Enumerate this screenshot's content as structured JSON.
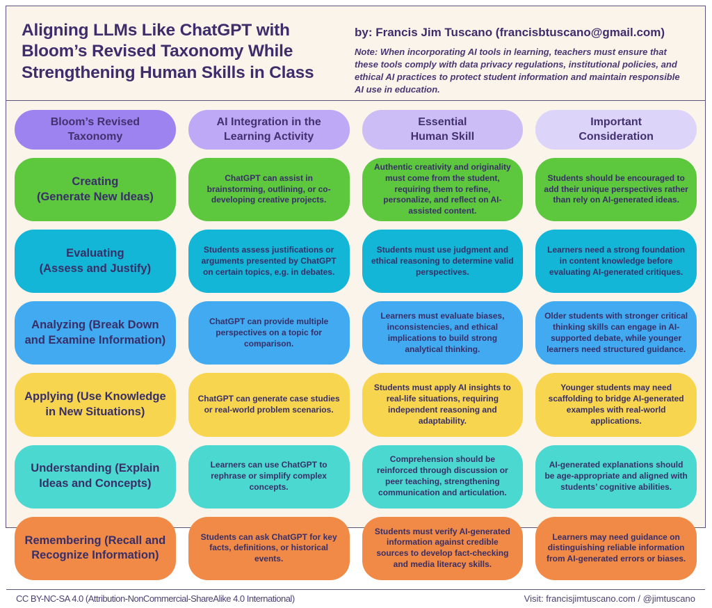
{
  "header": {
    "title": "Aligning LLMs Like ChatGPT with\nBloom’s Revised Taxonomy While\nStrengthening Human Skills in Class",
    "byline": "by: Francis Jim Tuscano (francisbtuscano@gmail.com)",
    "note": "Note: When incorporating AI tools in learning, teachers must ensure that these tools comply with data privacy regulations, institutional policies, and ethical AI practices to protect student information and maintain responsible AI use in education."
  },
  "table": {
    "columns": [
      {
        "label": "Bloom’s Revised\nTaxonomy",
        "color": "#9d83f0"
      },
      {
        "label": "AI Integration in the\nLearning Activity",
        "color": "#bda9f5"
      },
      {
        "label": "Essential\nHuman Skill",
        "color": "#ccbdf7"
      },
      {
        "label": "Important\nConsideration",
        "color": "#ddd4fa"
      }
    ],
    "rows": [
      {
        "taxonomy": "Creating\n(Generate New Ideas)",
        "color": "#5dc73e",
        "ai_integration": "ChatGPT can assist in brainstorming, outlining, or co-developing creative projects.",
        "human_skill": "Authentic creativity and originality must come from the student, requiring them to refine, personalize, and reflect on AI-assisted content.",
        "consideration": "Students should be encouraged to add their unique perspectives rather than rely on AI-generated ideas."
      },
      {
        "taxonomy": "Evaluating\n(Assess and Justify)",
        "color": "#13b6d6",
        "ai_integration": "Students assess justifications or arguments presented by ChatGPT on certain topics, e.g. in debates.",
        "human_skill": "Students must use judgment and ethical reasoning to determine valid perspectives.",
        "consideration": "Learners need a strong foundation in content knowledge before evaluating AI-generated critiques."
      },
      {
        "taxonomy": "Analyzing (Break Down\nand Examine Information)",
        "color": "#42aaf0",
        "ai_integration": "ChatGPT can provide multiple perspectives on a topic for comparison.",
        "human_skill": "Learners must evaluate biases, inconsistencies, and ethical implications to build strong analytical thinking.",
        "consideration": "Older students with stronger critical thinking skills can engage in AI-supported debate, while younger learners need structured guidance."
      },
      {
        "taxonomy": "Applying (Use Knowledge\nin New Situations)",
        "color": "#f8d54f",
        "ai_integration": "ChatGPT can generate case studies or real-world problem scenarios.",
        "human_skill": "Students must apply AI insights to real-life situations, requiring independent reasoning and adaptability.",
        "consideration": "Younger students may need scaffolding to bridge AI-generated examples with real-world applications."
      },
      {
        "taxonomy": "Understanding (Explain\nIdeas and Concepts)",
        "color": "#4bd8d0",
        "ai_integration": "Learners can use ChatGPT to rephrase or simplify complex concepts.",
        "human_skill": "Comprehension should be reinforced through discussion or peer teaching, strengthening communication and articulation.",
        "consideration": "AI-generated explanations should be age-appropriate and aligned with students’ cognitive abilities."
      },
      {
        "taxonomy": "Remembering (Recall and\nRecognize Information)",
        "color": "#f08a46",
        "ai_integration": "Students can ask ChatGPT for key facts, definitions, or historical events.",
        "human_skill": "Students must verify AI-generated information against credible sources to develop fact-checking and media literacy skills.",
        "consideration": "Learners may need guidance on distinguishing reliable information from AI-generated errors or biases."
      }
    ]
  },
  "footer": {
    "license": "CC BY-NC-SA 4.0 (Attribution-NonCommercial-ShareAlike 4.0 International)",
    "visit": "Visit: francisjimtuscano.com / @jimtuscano"
  },
  "colors": {
    "page_background": "#faf4ea",
    "frame_border": "#5a5278",
    "title_text": "#3d2d6b",
    "cell_text": "#392f68"
  }
}
